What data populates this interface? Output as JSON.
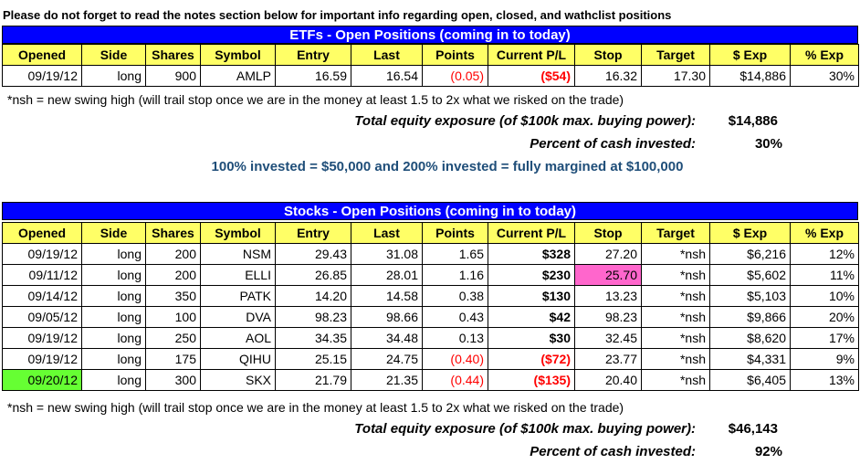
{
  "note": "Please do not forget to read the notes section below for important info regarding open, closed, and wathclist positions",
  "columns": [
    "Opened",
    "Side",
    "Shares",
    "Symbol",
    "Entry",
    "Last",
    "Points",
    "Current P/L",
    "Stop",
    "Target",
    "$ Exp",
    "% Exp"
  ],
  "etfs": {
    "title": "ETFs - Open Positions (coming in to today)",
    "rows": [
      {
        "opened": "09/19/12",
        "side": "long",
        "shares": "900",
        "symbol": "AMLP",
        "entry": "16.59",
        "last": "16.54",
        "points": "(0.05)",
        "pl": "($54)",
        "stop": "16.32",
        "target": "17.30",
        "exp": "$14,886",
        "pexp": "30%"
      }
    ],
    "footnote": "*nsh = new swing high (will trail stop once we are in the money at least 1.5 to 2x what we risked on the trade)",
    "total_label": "Total equity exposure (of $100k max. buying power):",
    "total_value": "$14,886",
    "percent_label": "Percent of cash invested:",
    "percent_value": "30%",
    "invested_note": "100% invested = $50,000 and 200% invested = fully margined at $100,000"
  },
  "stocks": {
    "title": "Stocks - Open Positions (coming in to today)",
    "rows": [
      {
        "opened": "09/19/12",
        "side": "long",
        "shares": "200",
        "symbol": "NSM",
        "entry": "29.43",
        "last": "31.08",
        "points": "1.65",
        "pl": "$328",
        "stop": "27.20",
        "target": "*nsh",
        "exp": "$6,216",
        "pexp": "12%"
      },
      {
        "opened": "09/11/12",
        "side": "long",
        "shares": "200",
        "symbol": "ELLI",
        "entry": "26.85",
        "last": "28.01",
        "points": "1.16",
        "pl": "$230",
        "stop": "25.70",
        "target": "*nsh",
        "exp": "$5,602",
        "pexp": "11%"
      },
      {
        "opened": "09/14/12",
        "side": "long",
        "shares": "350",
        "symbol": "PATK",
        "entry": "14.20",
        "last": "14.58",
        "points": "0.38",
        "pl": "$130",
        "stop": "13.23",
        "target": "*nsh",
        "exp": "$5,103",
        "pexp": "10%"
      },
      {
        "opened": "09/05/12",
        "side": "long",
        "shares": "100",
        "symbol": "DVA",
        "entry": "98.23",
        "last": "98.66",
        "points": "0.43",
        "pl": "$42",
        "stop": "98.23",
        "target": "*nsh",
        "exp": "$9,866",
        "pexp": "20%"
      },
      {
        "opened": "09/19/12",
        "side": "long",
        "shares": "250",
        "symbol": "AOL",
        "entry": "34.35",
        "last": "34.48",
        "points": "0.13",
        "pl": "$30",
        "stop": "32.45",
        "target": "*nsh",
        "exp": "$8,620",
        "pexp": "17%"
      },
      {
        "opened": "09/19/12",
        "side": "long",
        "shares": "175",
        "symbol": "QIHU",
        "entry": "25.15",
        "last": "24.75",
        "points": "(0.40)",
        "pl": "($72)",
        "stop": "23.77",
        "target": "*nsh",
        "exp": "$4,331",
        "pexp": "9%"
      },
      {
        "opened": "09/20/12",
        "side": "long",
        "shares": "300",
        "symbol": "SKX",
        "entry": "21.79",
        "last": "21.35",
        "points": "(0.44)",
        "pl": "($135)",
        "stop": "20.40",
        "target": "*nsh",
        "exp": "$6,405",
        "pexp": "13%"
      }
    ],
    "footnote": "*nsh = new swing high (will trail stop once we are in the money at least 1.5 to 2x what we risked on the trade)",
    "total_label": "Total equity exposure (of $100k max. buying power):",
    "total_value": "$46,143",
    "percent_label": "Percent of cash invested:",
    "percent_value": "92%"
  },
  "colors": {
    "banner": "#0000ff",
    "header": "#ffff66",
    "negative": "#ff0000",
    "stop_highlight": "#ff66cc",
    "opened_highlight": "#66ff33",
    "invested_note": "#1f4e79"
  }
}
